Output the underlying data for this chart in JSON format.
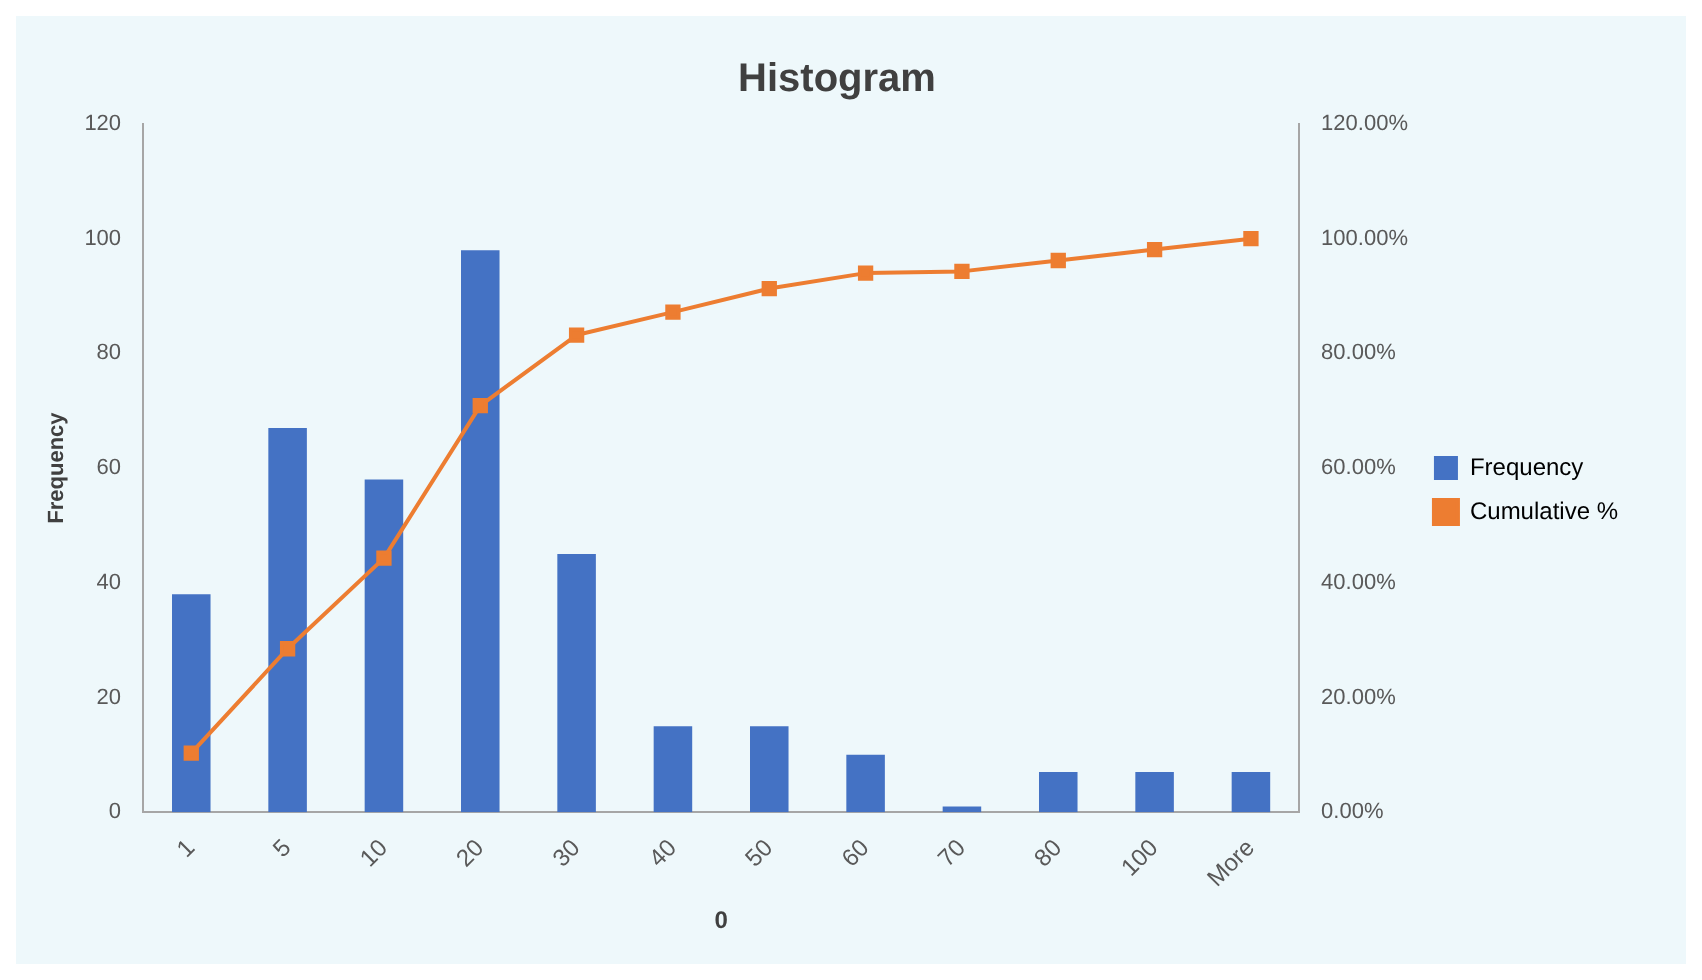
{
  "chart_data": {
    "type": "bar",
    "title": "Histogram",
    "xlabel": "0",
    "ylabel": "Frequency",
    "categories": [
      "1",
      "5",
      "10",
      "20",
      "30",
      "40",
      "50",
      "60",
      "70",
      "80",
      "100",
      "More"
    ],
    "series": [
      {
        "name": "Frequency",
        "color": "#4472c4",
        "values": [
          38,
          67,
          58,
          98,
          45,
          15,
          15,
          10,
          1,
          7,
          7,
          7
        ]
      },
      {
        "name": "Cumulative %",
        "type": "line",
        "axis": "y2",
        "color": "#ed7d31",
        "marker": "square",
        "values": [
          10.3,
          28.5,
          44.3,
          70.9,
          83.2,
          87.2,
          91.3,
          94.0,
          94.3,
          96.2,
          98.1,
          100
        ]
      }
    ],
    "ylim": [
      0,
      120
    ],
    "yticks": [
      0,
      20,
      40,
      60,
      80,
      100,
      120
    ],
    "y2lim": [
      0,
      120
    ],
    "y2ticks": [
      {
        "value": 0,
        "label": "0.00%"
      },
      {
        "value": 20,
        "label": "20.00%"
      },
      {
        "value": 40,
        "label": "40.00%"
      },
      {
        "value": 60,
        "label": "60.00%"
      },
      {
        "value": 80,
        "label": "80.00%"
      },
      {
        "value": 100,
        "label": "100.00%"
      },
      {
        "value": 120,
        "label": "120.00%"
      }
    ],
    "grid": false,
    "legend": "right"
  }
}
